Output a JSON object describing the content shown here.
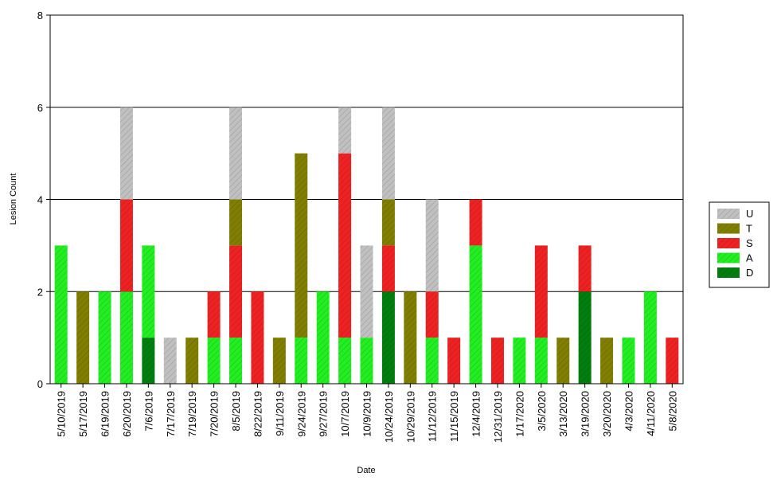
{
  "chart_data": {
    "type": "bar",
    "stacked": true,
    "xlabel": "Date",
    "ylabel": "Lesion Count",
    "ylim": [
      0,
      8
    ],
    "yticks": [
      0,
      2,
      4,
      6,
      8
    ],
    "grid": "horizontal",
    "legend_position": "right",
    "categories": [
      "5/10/2019",
      "5/17/2019",
      "6/19/2019",
      "6/20/2019",
      "7/6/2019",
      "7/17/2019",
      "7/19/2019",
      "7/20/2019",
      "8/5/2019",
      "8/22/2019",
      "9/11/2019",
      "9/24/2019",
      "9/27/2019",
      "10/7/2019",
      "10/9/2019",
      "10/24/2019",
      "10/29/2019",
      "11/12/2019",
      "11/15/2019",
      "12/4/2019",
      "12/31/2019",
      "1/17/2020",
      "3/5/2020",
      "3/13/2020",
      "3/19/2020",
      "3/20/2020",
      "4/3/2020",
      "4/11/2020",
      "5/8/2020"
    ],
    "series": [
      {
        "name": "D",
        "color": "#007f0e",
        "values": [
          0,
          0,
          0,
          0,
          1,
          0,
          0,
          0,
          0,
          0,
          0,
          0,
          0,
          0,
          0,
          2,
          0,
          0,
          0,
          0,
          0,
          0,
          0,
          0,
          2,
          0,
          0,
          0,
          0
        ]
      },
      {
        "name": "A",
        "color": "#22ee22",
        "values": [
          3,
          0,
          2,
          2,
          2,
          0,
          0,
          1,
          1,
          0,
          0,
          1,
          2,
          1,
          1,
          0,
          0,
          1,
          0,
          3,
          0,
          1,
          1,
          0,
          0,
          0,
          1,
          2,
          0
        ]
      },
      {
        "name": "S",
        "color": "#ee2222",
        "values": [
          0,
          0,
          0,
          2,
          0,
          0,
          0,
          1,
          2,
          2,
          0,
          0,
          0,
          4,
          0,
          1,
          0,
          1,
          1,
          1,
          1,
          0,
          2,
          0,
          1,
          0,
          0,
          0,
          1
        ]
      },
      {
        "name": "T",
        "color": "#807f00",
        "values": [
          0,
          2,
          0,
          0,
          0,
          0,
          1,
          0,
          1,
          0,
          1,
          4,
          0,
          0,
          0,
          1,
          2,
          0,
          0,
          0,
          0,
          0,
          0,
          1,
          0,
          1,
          0,
          0,
          0
        ]
      },
      {
        "name": "U",
        "color": "#c0c0c0",
        "values": [
          0,
          0,
          0,
          2,
          0,
          1,
          0,
          0,
          2,
          0,
          0,
          0,
          0,
          1,
          2,
          2,
          0,
          2,
          0,
          0,
          0,
          0,
          0,
          0,
          0,
          0,
          0,
          0,
          0
        ]
      }
    ],
    "legend_order": [
      "U",
      "T",
      "S",
      "A",
      "D"
    ]
  }
}
